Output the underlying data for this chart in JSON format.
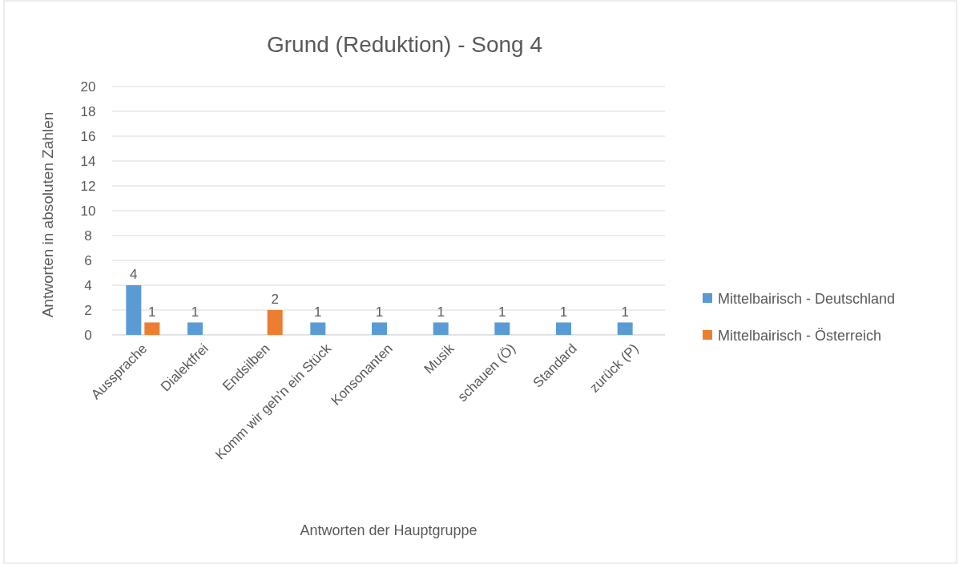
{
  "chart_data": {
    "type": "bar",
    "title": "Grund (Reduktion) - Song 4",
    "xlabel": "Antworten der Hauptgruppe",
    "ylabel": "Antworten in absoluten Zahlen",
    "categories": [
      "Aussprache",
      "Dialektfrei",
      "Endsilben",
      "Komm wir geh'n ein Stück",
      "Konsonanten",
      "Musik",
      "schauen (Ö)",
      "Standard",
      "zurück (P)"
    ],
    "series": [
      {
        "name": "Mittelbairisch - Deutschland",
        "color": "#5b9bd5",
        "values": [
          4,
          1,
          null,
          1,
          1,
          1,
          1,
          1,
          1
        ]
      },
      {
        "name": "Mittelbairisch - Österreich",
        "color": "#ed7d31",
        "values": [
          1,
          null,
          2,
          null,
          null,
          null,
          null,
          null,
          null
        ]
      }
    ],
    "ylim": [
      0,
      20
    ],
    "yticks": [
      0,
      2,
      4,
      6,
      8,
      10,
      12,
      14,
      16,
      18,
      20
    ],
    "grid": "y",
    "legend": "right",
    "data_labels": true
  }
}
